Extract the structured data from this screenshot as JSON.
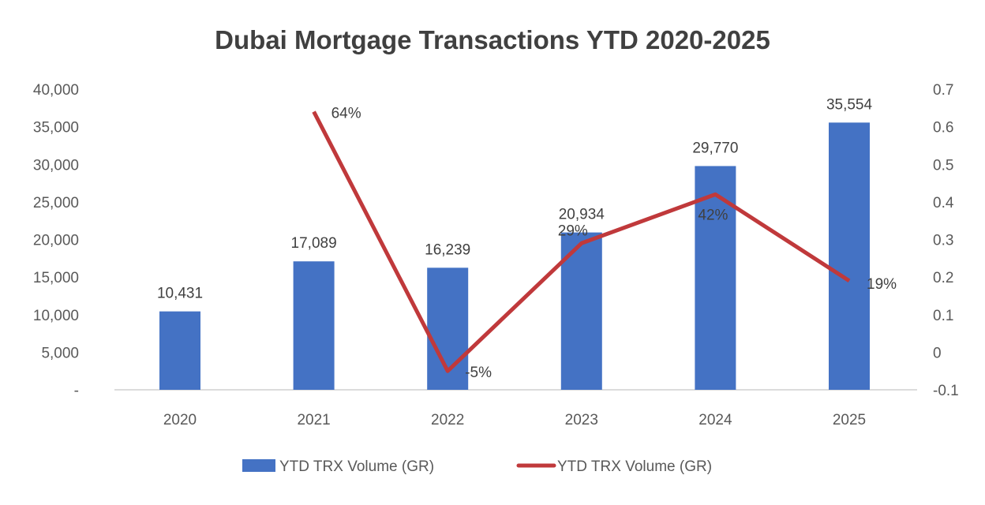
{
  "chart_data": {
    "type": "bar",
    "title": "Dubai Mortgage Transactions  YTD 2020-2025",
    "categories": [
      "2020",
      "2021",
      "2022",
      "2023",
      "2024",
      "2025"
    ],
    "series": [
      {
        "name": "YTD TRX Volume (GR)",
        "type": "bar",
        "axis": "left",
        "values": [
          10431,
          17089,
          16239,
          20934,
          29770,
          35554
        ],
        "labels": [
          "10,431",
          "17,089",
          "16,239",
          "20,934",
          "29,770",
          "35,554"
        ],
        "color": "#4472C4"
      },
      {
        "name": "YTD TRX Volume (GR)",
        "type": "line",
        "axis": "right",
        "values": [
          null,
          0.64,
          -0.05,
          0.29,
          0.42,
          0.19
        ],
        "labels": [
          "",
          "64%",
          "-5%",
          "29%",
          "42%",
          "19%"
        ],
        "color": "#C0393B"
      }
    ],
    "left_axis": {
      "range": [
        0,
        40000
      ],
      "ticks": [
        "-",
        "5,000",
        "10,000",
        "15,000",
        "20,000",
        "25,000",
        "30,000",
        "35,000",
        "40,000"
      ]
    },
    "right_axis": {
      "range": [
        -0.1,
        0.7
      ],
      "ticks": [
        "-0.1",
        "0",
        "0.1",
        "0.2",
        "0.3",
        "0.4",
        "0.5",
        "0.6",
        "0.7"
      ]
    },
    "grid": false,
    "legend_position": "bottom"
  }
}
